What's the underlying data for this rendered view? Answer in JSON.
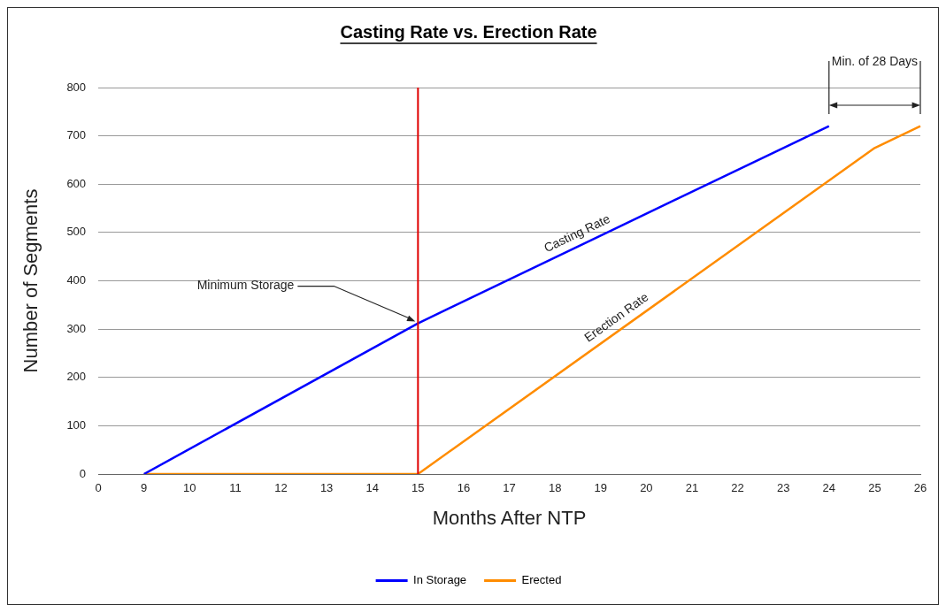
{
  "chart_data": {
    "type": "line",
    "title": "Casting Rate vs. Erection Rate",
    "xlabel": "Months After NTP",
    "ylabel": "Number of Segments",
    "categories": [
      "0",
      "9",
      "10",
      "11",
      "12",
      "13",
      "14",
      "15",
      "16",
      "17",
      "18",
      "19",
      "20",
      "21",
      "22",
      "23",
      "24",
      "25",
      "26"
    ],
    "series": [
      {
        "name": "In Storage",
        "color": "#0000ff",
        "values": [
          null,
          0,
          null,
          null,
          null,
          null,
          null,
          312,
          null,
          null,
          null,
          null,
          null,
          null,
          null,
          675,
          720,
          null,
          null
        ]
      },
      {
        "name": "Erected",
        "color": "#ff8c00",
        "values": [
          null,
          0,
          null,
          null,
          null,
          null,
          null,
          0,
          null,
          null,
          null,
          null,
          null,
          null,
          null,
          null,
          null,
          675,
          720
        ]
      }
    ],
    "ylim": [
      0,
      800
    ],
    "yticks": [
      0,
      100,
      200,
      300,
      400,
      500,
      600,
      700,
      800
    ],
    "grid": "y",
    "legend": "bottom",
    "marker": "none",
    "line_style": "solid",
    "ref_lines": [
      {
        "axis": "x",
        "value": "15",
        "color": "#e00000"
      }
    ],
    "annotations": [
      "Casting Rate",
      "Erection Rate",
      {
        "text": "Minimum Storage",
        "x": "15",
        "y": 312
      },
      "Min. of 28 Days"
    ]
  }
}
